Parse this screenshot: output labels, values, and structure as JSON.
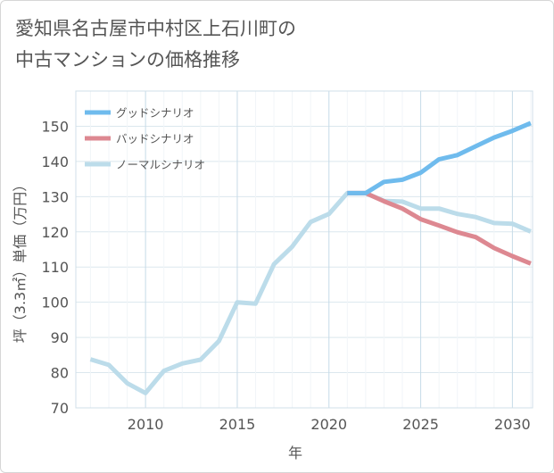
{
  "title": "愛知県名古屋市中村区上石川町の\n中古マンションの価格推移",
  "chart_data": {
    "type": "line",
    "xlabel": "年",
    "ylabel": "坪（3.3㎡）単価（万円）",
    "xlim": [
      2006.2,
      2031.1
    ],
    "ylim": [
      70,
      160
    ],
    "xticks": [
      2010,
      2015,
      2020,
      2025,
      2030
    ],
    "yticks": [
      70,
      80,
      90,
      100,
      110,
      120,
      130,
      140,
      150
    ],
    "grid": true,
    "legend_position": "top-left",
    "series": [
      {
        "name": "グッドシナリオ",
        "color": "#6fbbed",
        "x": [
          2021,
          2022,
          2023,
          2024,
          2025,
          2026,
          2027,
          2028,
          2029,
          2030,
          2031
        ],
        "y": [
          131,
          131,
          134.2,
          134.8,
          136.8,
          140.6,
          141.8,
          144.3,
          146.8,
          148.7,
          150.9
        ]
      },
      {
        "name": "バッドシナリオ",
        "color": "#dd8891",
        "x": [
          2021,
          2022,
          2023,
          2024,
          2025,
          2026,
          2027,
          2028,
          2029,
          2030,
          2031
        ],
        "y": [
          131,
          131,
          128.7,
          126.6,
          123.6,
          121.8,
          119.9,
          118.5,
          115.4,
          113.1,
          111
        ]
      },
      {
        "name": "ノーマルシナリオ",
        "color": "#bcdcea",
        "x": [
          2007,
          2008,
          2009,
          2010,
          2011,
          2012,
          2013,
          2014,
          2015,
          2016,
          2017,
          2018,
          2019,
          2020,
          2021,
          2022,
          2023,
          2024,
          2025,
          2026,
          2027,
          2028,
          2029,
          2030,
          2031
        ],
        "y": [
          83.8,
          82.2,
          77,
          74.2,
          80.5,
          82.6,
          83.7,
          89,
          100,
          99.6,
          110.8,
          115.8,
          122.8,
          125.1,
          131,
          131,
          128.8,
          128.6,
          126.6,
          126.6,
          125.1,
          124.2,
          122.5,
          122.3,
          120.1
        ]
      }
    ]
  }
}
